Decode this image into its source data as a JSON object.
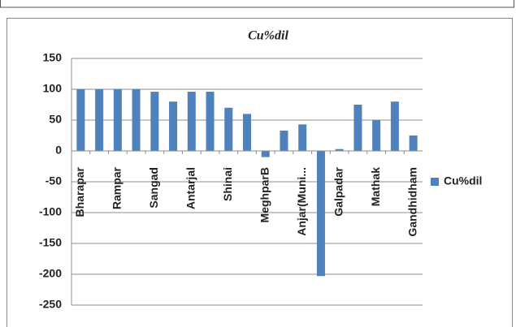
{
  "chart_data": {
    "type": "bar",
    "title": "Cu%dil",
    "categories": [
      "Bharapar",
      null,
      "Rampar",
      null,
      "Sangad",
      null,
      "Antarjal",
      null,
      "Shinai",
      null,
      "MeghparB",
      null,
      "Anjar(Muni...",
      null,
      "Galpadar",
      null,
      "Mathak",
      null,
      "Gandhidham"
    ],
    "series": [
      {
        "name": "Cu%dil",
        "color": "#4f81bd",
        "values": [
          100,
          100,
          100,
          100,
          96,
          80,
          96,
          96,
          70,
          60,
          -10,
          33,
          43,
          -203,
          3,
          75,
          50,
          80,
          25
        ]
      }
    ],
    "ylim": [
      -250,
      150
    ],
    "yticks": [
      -250,
      -200,
      -150,
      -100,
      -50,
      0,
      50,
      100,
      150
    ],
    "grid": true,
    "legend": "right"
  }
}
